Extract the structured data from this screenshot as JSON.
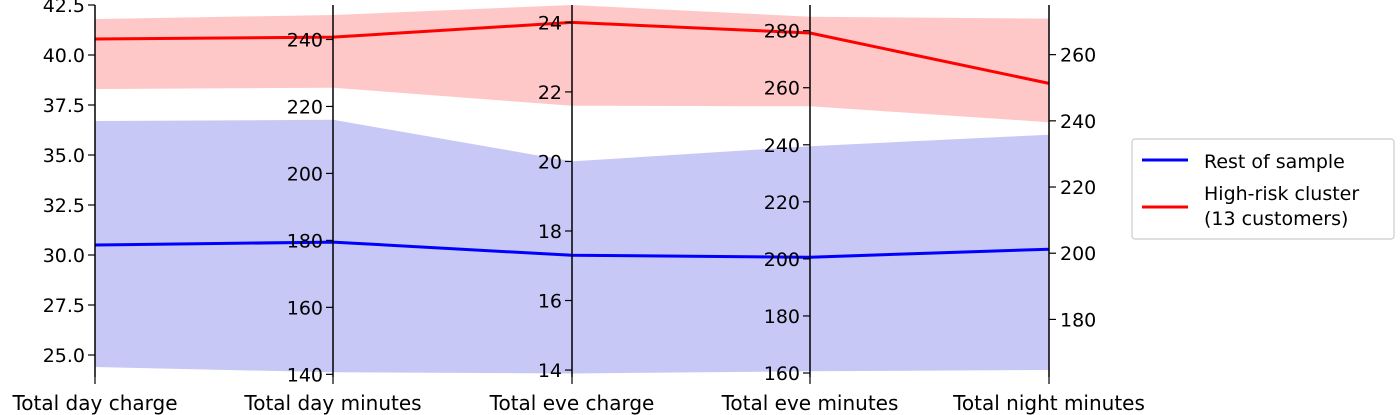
{
  "chart_data": {
    "type": "line",
    "subtype": "parallel-coordinates",
    "categories": [
      "Total day charge",
      "Total day minutes",
      "Total eve charge",
      "Total eve minutes",
      "Total night minutes"
    ],
    "axes": [
      {
        "name": "Total day charge",
        "range": [
          23.9,
          42.5
        ],
        "ticks": [
          "25.0",
          "27.5",
          "30.0",
          "32.5",
          "35.0",
          "37.5",
          "40.0",
          "42.5"
        ],
        "tick_values": [
          25.0,
          27.5,
          30.0,
          32.5,
          35.0,
          37.5,
          40.0,
          42.5
        ],
        "side": "left"
      },
      {
        "name": "Total day minutes",
        "range": [
          139.2,
          250.3
        ],
        "ticks": [
          "140",
          "160",
          "180",
          "200",
          "220",
          "240"
        ],
        "tick_values": [
          140,
          160,
          180,
          200,
          220,
          240
        ],
        "side": "left"
      },
      {
        "name": "Total eve charge",
        "range": [
          13.8,
          24.5
        ],
        "ticks": [
          "14",
          "16",
          "18",
          "20",
          "22",
          "24"
        ],
        "tick_values": [
          14,
          16,
          18,
          20,
          22,
          24
        ],
        "side": "left"
      },
      {
        "name": "Total eve minutes",
        "range": [
          158.6,
          289.0
        ],
        "ticks": [
          "160",
          "180",
          "200",
          "220",
          "240",
          "260",
          "280"
        ],
        "tick_values": [
          160,
          180,
          200,
          220,
          240,
          260,
          280
        ],
        "side": "left"
      },
      {
        "name": "Total night minutes",
        "range": [
          162.6,
          275.0
        ],
        "ticks": [
          "180",
          "200",
          "220",
          "240",
          "260"
        ],
        "tick_values": [
          180,
          200,
          220,
          240,
          260
        ],
        "side": "right"
      }
    ],
    "series": [
      {
        "name": "Rest of sample",
        "color": "#0000ff",
        "band_color": "#c8c8f7",
        "values": [
          30.5,
          179.5,
          17.3,
          200.6,
          201.2
        ],
        "band_low": [
          24.4,
          140.6,
          13.9,
          160.6,
          164.7
        ],
        "band_high": [
          36.7,
          216.0,
          20.0,
          239.5,
          235.8
        ]
      },
      {
        "name": "High-risk cluster\n(13 customers)",
        "color": "#ff0000",
        "band_color": "#ffc8c8",
        "values": [
          40.8,
          240.7,
          24.0,
          279.2,
          251.3
        ],
        "band_low": [
          38.3,
          225.6,
          21.6,
          253.5,
          239.6
        ],
        "band_high": [
          41.8,
          247.3,
          24.5,
          284.9,
          270.9
        ]
      }
    ],
    "legend": {
      "placement": "right",
      "entries": [
        "Rest of sample",
        "High-risk cluster\n(13 customers)"
      ]
    },
    "grid": false
  }
}
